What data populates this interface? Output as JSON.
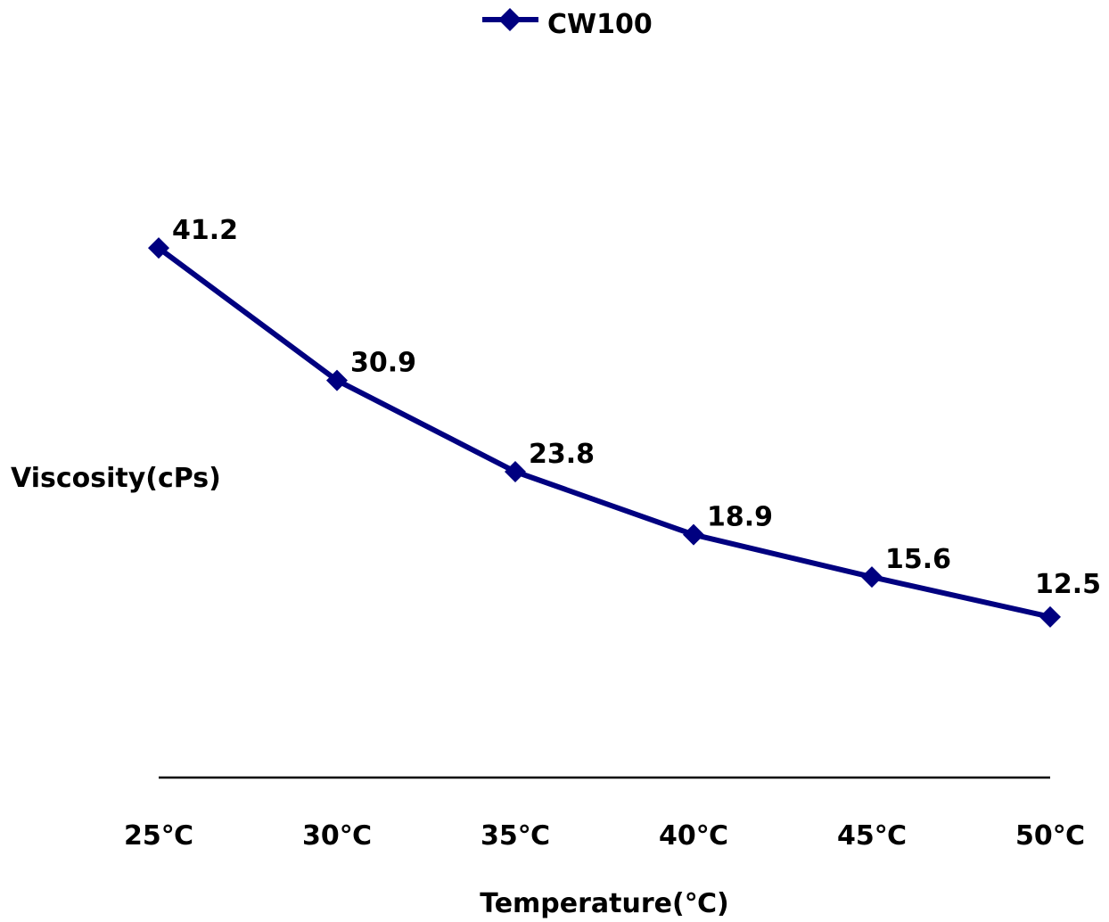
{
  "chart_data": {
    "type": "line",
    "categories": [
      "25℃",
      "30℃",
      "35℃",
      "40℃",
      "45℃",
      "50℃"
    ],
    "series": [
      {
        "name": "CW100",
        "values": [
          41.2,
          30.9,
          23.8,
          18.9,
          15.6,
          12.5
        ],
        "color": "#000080",
        "marker": "diamond"
      }
    ],
    "xlabel": "Temperature(℃)",
    "ylabel": "Viscosity(cPs)",
    "ylim": [
      0,
      58
    ],
    "data_labels": [
      "41.2",
      "30.9",
      "23.8",
      "18.9",
      "15.6",
      "12.5"
    ],
    "grid": false,
    "legend": "top-center"
  }
}
